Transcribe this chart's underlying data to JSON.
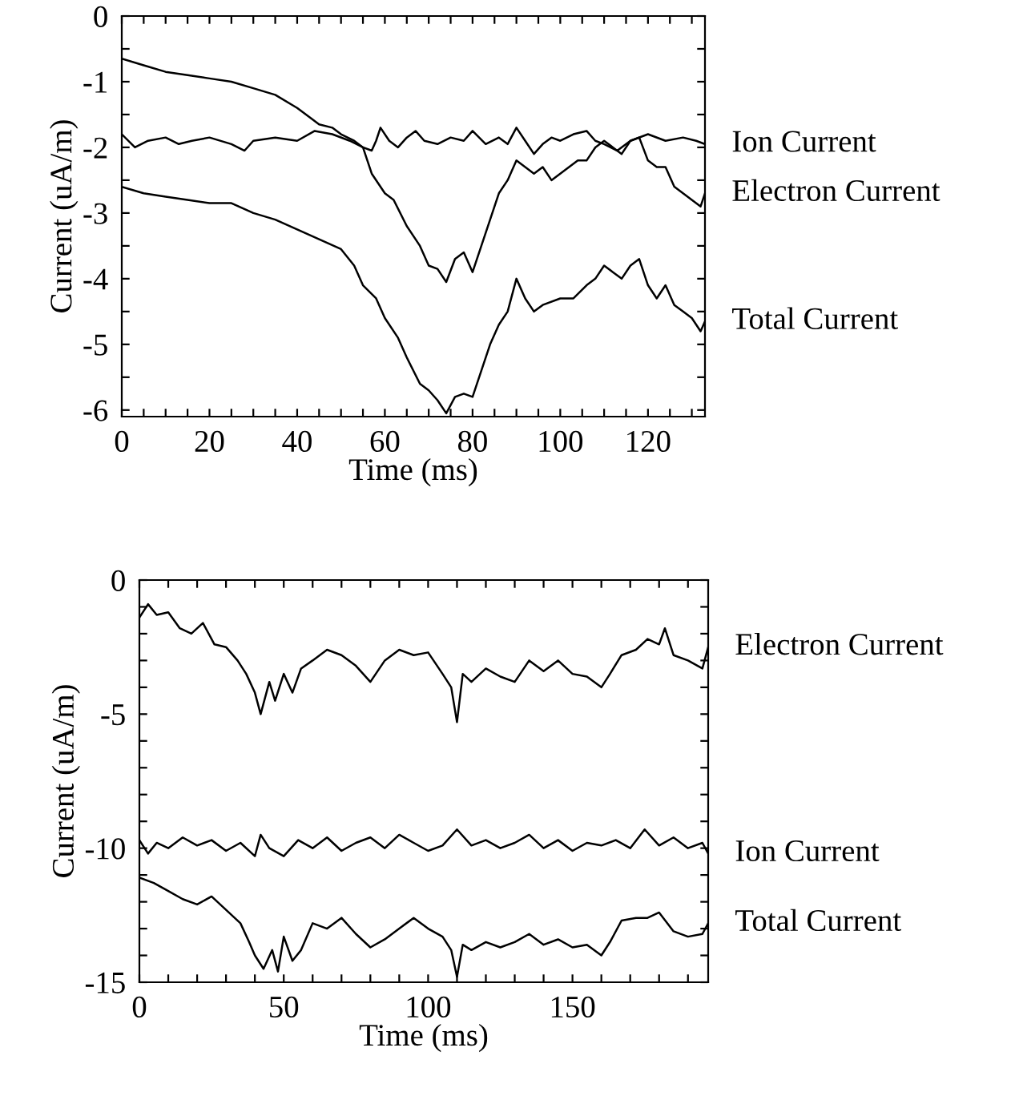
{
  "chart_data": [
    {
      "type": "line",
      "xlabel": "Time (ms)",
      "ylabel": "Current (uA/m)",
      "legend": "right",
      "grid": false,
      "xlim": [
        0,
        133
      ],
      "ylim": [
        -6.1,
        0
      ],
      "xticks": [
        0,
        {
          "value": 5,
          "label": null
        },
        {
          "value": 10,
          "label": null
        },
        {
          "value": 15,
          "label": null
        },
        20,
        {
          "value": 25,
          "label": null
        },
        {
          "value": 30,
          "label": null
        },
        {
          "value": 35,
          "label": null
        },
        40,
        {
          "value": 45,
          "label": null
        },
        {
          "value": 50,
          "label": null
        },
        {
          "value": 55,
          "label": null
        },
        60,
        {
          "value": 65,
          "label": null
        },
        {
          "value": 70,
          "label": null
        },
        {
          "value": 75,
          "label": null
        },
        80,
        {
          "value": 85,
          "label": null
        },
        {
          "value": 90,
          "label": null
        },
        {
          "value": 95,
          "label": null
        },
        100,
        {
          "value": 105,
          "label": null
        },
        {
          "value": 110,
          "label": null
        },
        {
          "value": 115,
          "label": null
        },
        120,
        {
          "value": 125,
          "label": null
        },
        {
          "value": 130,
          "label": null
        }
      ],
      "yticks": [
        {
          "value": -6,
          "label": "-6"
        },
        {
          "value": -5.5,
          "label": null
        },
        {
          "value": -5,
          "label": "-5"
        },
        {
          "value": -4.5,
          "label": null
        },
        {
          "value": -4,
          "label": "-4"
        },
        {
          "value": -3.5,
          "label": null
        },
        {
          "value": -3,
          "label": "-3"
        },
        {
          "value": -2.5,
          "label": null
        },
        {
          "value": -2,
          "label": "-2"
        },
        {
          "value": -1.5,
          "label": null
        },
        {
          "value": -1,
          "label": "-1"
        },
        {
          "value": -0.5,
          "label": null
        },
        0
      ],
      "series": [
        {
          "name": "Ion Current",
          "color": "#000000",
          "x": [
            0,
            3,
            6,
            10,
            13,
            16,
            20,
            25,
            28,
            30,
            35,
            40,
            44,
            48,
            52,
            55,
            57,
            58,
            59,
            61,
            63,
            65,
            67,
            69,
            72,
            75,
            78,
            80,
            83,
            86,
            88,
            90,
            92,
            94,
            96,
            98,
            100,
            103,
            106,
            108,
            110,
            113,
            116,
            120,
            124,
            128,
            131,
            133
          ],
          "values": [
            -1.8,
            -2.0,
            -1.9,
            -1.85,
            -1.95,
            -1.9,
            -1.85,
            -1.95,
            -2.05,
            -1.9,
            -1.85,
            -1.9,
            -1.75,
            -1.8,
            -1.9,
            -2.0,
            -2.05,
            -1.9,
            -1.7,
            -1.9,
            -2.0,
            -1.85,
            -1.75,
            -1.9,
            -1.95,
            -1.85,
            -1.9,
            -1.75,
            -1.95,
            -1.85,
            -1.95,
            -1.7,
            -1.9,
            -2.1,
            -1.95,
            -1.85,
            -1.9,
            -1.8,
            -1.75,
            -1.9,
            -1.95,
            -2.05,
            -1.9,
            -1.8,
            -1.9,
            -1.85,
            -1.9,
            -1.95
          ]
        },
        {
          "name": "Electron Current",
          "color": "#000000",
          "x": [
            0,
            5,
            10,
            15,
            20,
            25,
            30,
            35,
            40,
            43,
            45,
            48,
            50,
            53,
            55,
            57,
            60,
            62,
            65,
            68,
            70,
            72,
            74,
            76,
            78,
            80,
            82,
            84,
            86,
            88,
            90,
            92,
            94,
            96,
            98,
            100,
            102,
            104,
            106,
            108,
            110,
            112,
            114,
            116,
            118,
            120,
            122,
            124,
            126,
            128,
            130,
            132,
            133
          ],
          "values": [
            -0.65,
            -0.75,
            -0.85,
            -0.9,
            -0.95,
            -1.0,
            -1.1,
            -1.2,
            -1.4,
            -1.55,
            -1.65,
            -1.7,
            -1.8,
            -1.9,
            -2.0,
            -2.4,
            -2.7,
            -2.8,
            -3.2,
            -3.5,
            -3.8,
            -3.85,
            -4.05,
            -3.7,
            -3.6,
            -3.9,
            -3.5,
            -3.1,
            -2.7,
            -2.5,
            -2.2,
            -2.3,
            -2.4,
            -2.3,
            -2.5,
            -2.4,
            -2.3,
            -2.2,
            -2.2,
            -2.0,
            -1.9,
            -2.0,
            -2.1,
            -1.9,
            -1.85,
            -2.2,
            -2.3,
            -2.3,
            -2.6,
            -2.7,
            -2.8,
            -2.9,
            -2.7
          ]
        },
        {
          "name": "Total Current",
          "color": "#000000",
          "x": [
            0,
            5,
            10,
            15,
            20,
            25,
            30,
            35,
            40,
            45,
            50,
            53,
            55,
            58,
            60,
            63,
            65,
            68,
            70,
            72,
            74,
            76,
            78,
            80,
            82,
            84,
            86,
            88,
            90,
            92,
            94,
            96,
            100,
            103,
            106,
            108,
            110,
            112,
            114,
            116,
            118,
            120,
            122,
            124,
            126,
            128,
            130,
            132,
            133
          ],
          "values": [
            -2.6,
            -2.7,
            -2.75,
            -2.8,
            -2.85,
            -2.85,
            -3.0,
            -3.1,
            -3.25,
            -3.4,
            -3.55,
            -3.8,
            -4.1,
            -4.3,
            -4.6,
            -4.9,
            -5.2,
            -5.6,
            -5.7,
            -5.85,
            -6.05,
            -5.8,
            -5.75,
            -5.8,
            -5.4,
            -5.0,
            -4.7,
            -4.5,
            -4.0,
            -4.3,
            -4.5,
            -4.4,
            -4.3,
            -4.3,
            -4.1,
            -4.0,
            -3.8,
            -3.9,
            -4.0,
            -3.8,
            -3.7,
            -4.1,
            -4.3,
            -4.1,
            -4.4,
            -4.5,
            -4.6,
            -4.8,
            -4.65
          ]
        }
      ]
    },
    {
      "type": "line",
      "xlabel": "Time (ms)",
      "ylabel": "Current (uA/m)",
      "legend": "right",
      "grid": false,
      "xlim": [
        0,
        197
      ],
      "ylim": [
        -15,
        0
      ],
      "xticks": [
        0,
        {
          "value": 10,
          "label": null
        },
        {
          "value": 20,
          "label": null
        },
        {
          "value": 30,
          "label": null
        },
        {
          "value": 40,
          "label": null
        },
        50,
        {
          "value": 60,
          "label": null
        },
        {
          "value": 70,
          "label": null
        },
        {
          "value": 80,
          "label": null
        },
        {
          "value": 90,
          "label": null
        },
        100,
        {
          "value": 110,
          "label": null
        },
        {
          "value": 120,
          "label": null
        },
        {
          "value": 130,
          "label": null
        },
        {
          "value": 140,
          "label": null
        },
        150,
        {
          "value": 160,
          "label": null
        },
        {
          "value": 170,
          "label": null
        },
        {
          "value": 180,
          "label": null
        },
        {
          "value": 190,
          "label": null
        }
      ],
      "yticks": [
        {
          "value": -15,
          "label": "-15"
        },
        {
          "value": -14,
          "label": null
        },
        {
          "value": -13,
          "label": null
        },
        {
          "value": -12,
          "label": null
        },
        {
          "value": -11,
          "label": null
        },
        {
          "value": -10,
          "label": "-10"
        },
        {
          "value": -9,
          "label": null
        },
        {
          "value": -8,
          "label": null
        },
        {
          "value": -7,
          "label": null
        },
        {
          "value": -6,
          "label": null
        },
        {
          "value": -5,
          "label": "-5"
        },
        {
          "value": -4,
          "label": null
        },
        {
          "value": -3,
          "label": null
        },
        {
          "value": -2,
          "label": null
        },
        {
          "value": -1,
          "label": null
        },
        0
      ],
      "series": [
        {
          "name": "Electron Current",
          "color": "#000000",
          "x": [
            0,
            3,
            6,
            10,
            14,
            18,
            22,
            26,
            30,
            34,
            37,
            40,
            42,
            45,
            47,
            50,
            53,
            56,
            60,
            65,
            70,
            75,
            80,
            85,
            90,
            95,
            100,
            105,
            108,
            110,
            112,
            115,
            120,
            125,
            130,
            135,
            140,
            145,
            150,
            155,
            160,
            163,
            167,
            172,
            176,
            180,
            182,
            185,
            190,
            195,
            197
          ],
          "values": [
            -1.4,
            -0.9,
            -1.3,
            -1.2,
            -1.8,
            -2.0,
            -1.6,
            -2.4,
            -2.5,
            -3.0,
            -3.5,
            -4.2,
            -5.0,
            -3.8,
            -4.5,
            -3.5,
            -4.2,
            -3.3,
            -3.0,
            -2.6,
            -2.8,
            -3.2,
            -3.8,
            -3.0,
            -2.6,
            -2.8,
            -2.7,
            -3.5,
            -4.0,
            -5.3,
            -3.5,
            -3.8,
            -3.3,
            -3.6,
            -3.8,
            -3.0,
            -3.4,
            -3.0,
            -3.5,
            -3.6,
            -4.0,
            -3.5,
            -2.8,
            -2.6,
            -2.2,
            -2.4,
            -1.8,
            -2.8,
            -3.0,
            -3.3,
            -2.5
          ]
        },
        {
          "name": "Ion Current",
          "color": "#000000",
          "x": [
            0,
            3,
            6,
            10,
            15,
            20,
            25,
            30,
            35,
            40,
            42,
            45,
            50,
            55,
            60,
            65,
            70,
            75,
            80,
            85,
            90,
            95,
            100,
            105,
            110,
            115,
            120,
            125,
            130,
            135,
            140,
            145,
            150,
            155,
            160,
            165,
            170,
            175,
            180,
            185,
            190,
            195,
            197
          ],
          "values": [
            -9.7,
            -10.2,
            -9.8,
            -10.0,
            -9.6,
            -9.9,
            -9.7,
            -10.1,
            -9.8,
            -10.3,
            -9.5,
            -10.0,
            -10.3,
            -9.7,
            -10.0,
            -9.6,
            -10.1,
            -9.8,
            -9.6,
            -10.0,
            -9.5,
            -9.8,
            -10.1,
            -9.9,
            -9.3,
            -9.9,
            -9.7,
            -10.0,
            -9.8,
            -9.5,
            -10.0,
            -9.7,
            -10.1,
            -9.8,
            -9.9,
            -9.7,
            -10.0,
            -9.3,
            -9.9,
            -9.6,
            -10.0,
            -9.8,
            -10.2
          ]
        },
        {
          "name": "Total Current",
          "color": "#000000",
          "x": [
            0,
            5,
            10,
            15,
            20,
            25,
            30,
            35,
            38,
            40,
            43,
            46,
            48,
            50,
            53,
            56,
            60,
            65,
            70,
            75,
            80,
            85,
            90,
            95,
            100,
            105,
            108,
            110,
            112,
            115,
            120,
            125,
            130,
            135,
            140,
            145,
            150,
            155,
            160,
            163,
            167,
            172,
            176,
            180,
            185,
            190,
            195,
            197
          ],
          "values": [
            -11.1,
            -11.3,
            -11.6,
            -11.9,
            -12.1,
            -11.8,
            -12.3,
            -12.8,
            -13.5,
            -14.0,
            -14.5,
            -13.8,
            -14.6,
            -13.3,
            -14.2,
            -13.8,
            -12.8,
            -13.0,
            -12.6,
            -13.2,
            -13.7,
            -13.4,
            -13.0,
            -12.6,
            -13.0,
            -13.3,
            -13.8,
            -14.8,
            -13.6,
            -13.8,
            -13.5,
            -13.7,
            -13.5,
            -13.2,
            -13.6,
            -13.4,
            -13.7,
            -13.6,
            -14.0,
            -13.5,
            -12.7,
            -12.6,
            -12.6,
            -12.4,
            -13.1,
            -13.3,
            -13.2,
            -12.8
          ]
        }
      ]
    }
  ]
}
